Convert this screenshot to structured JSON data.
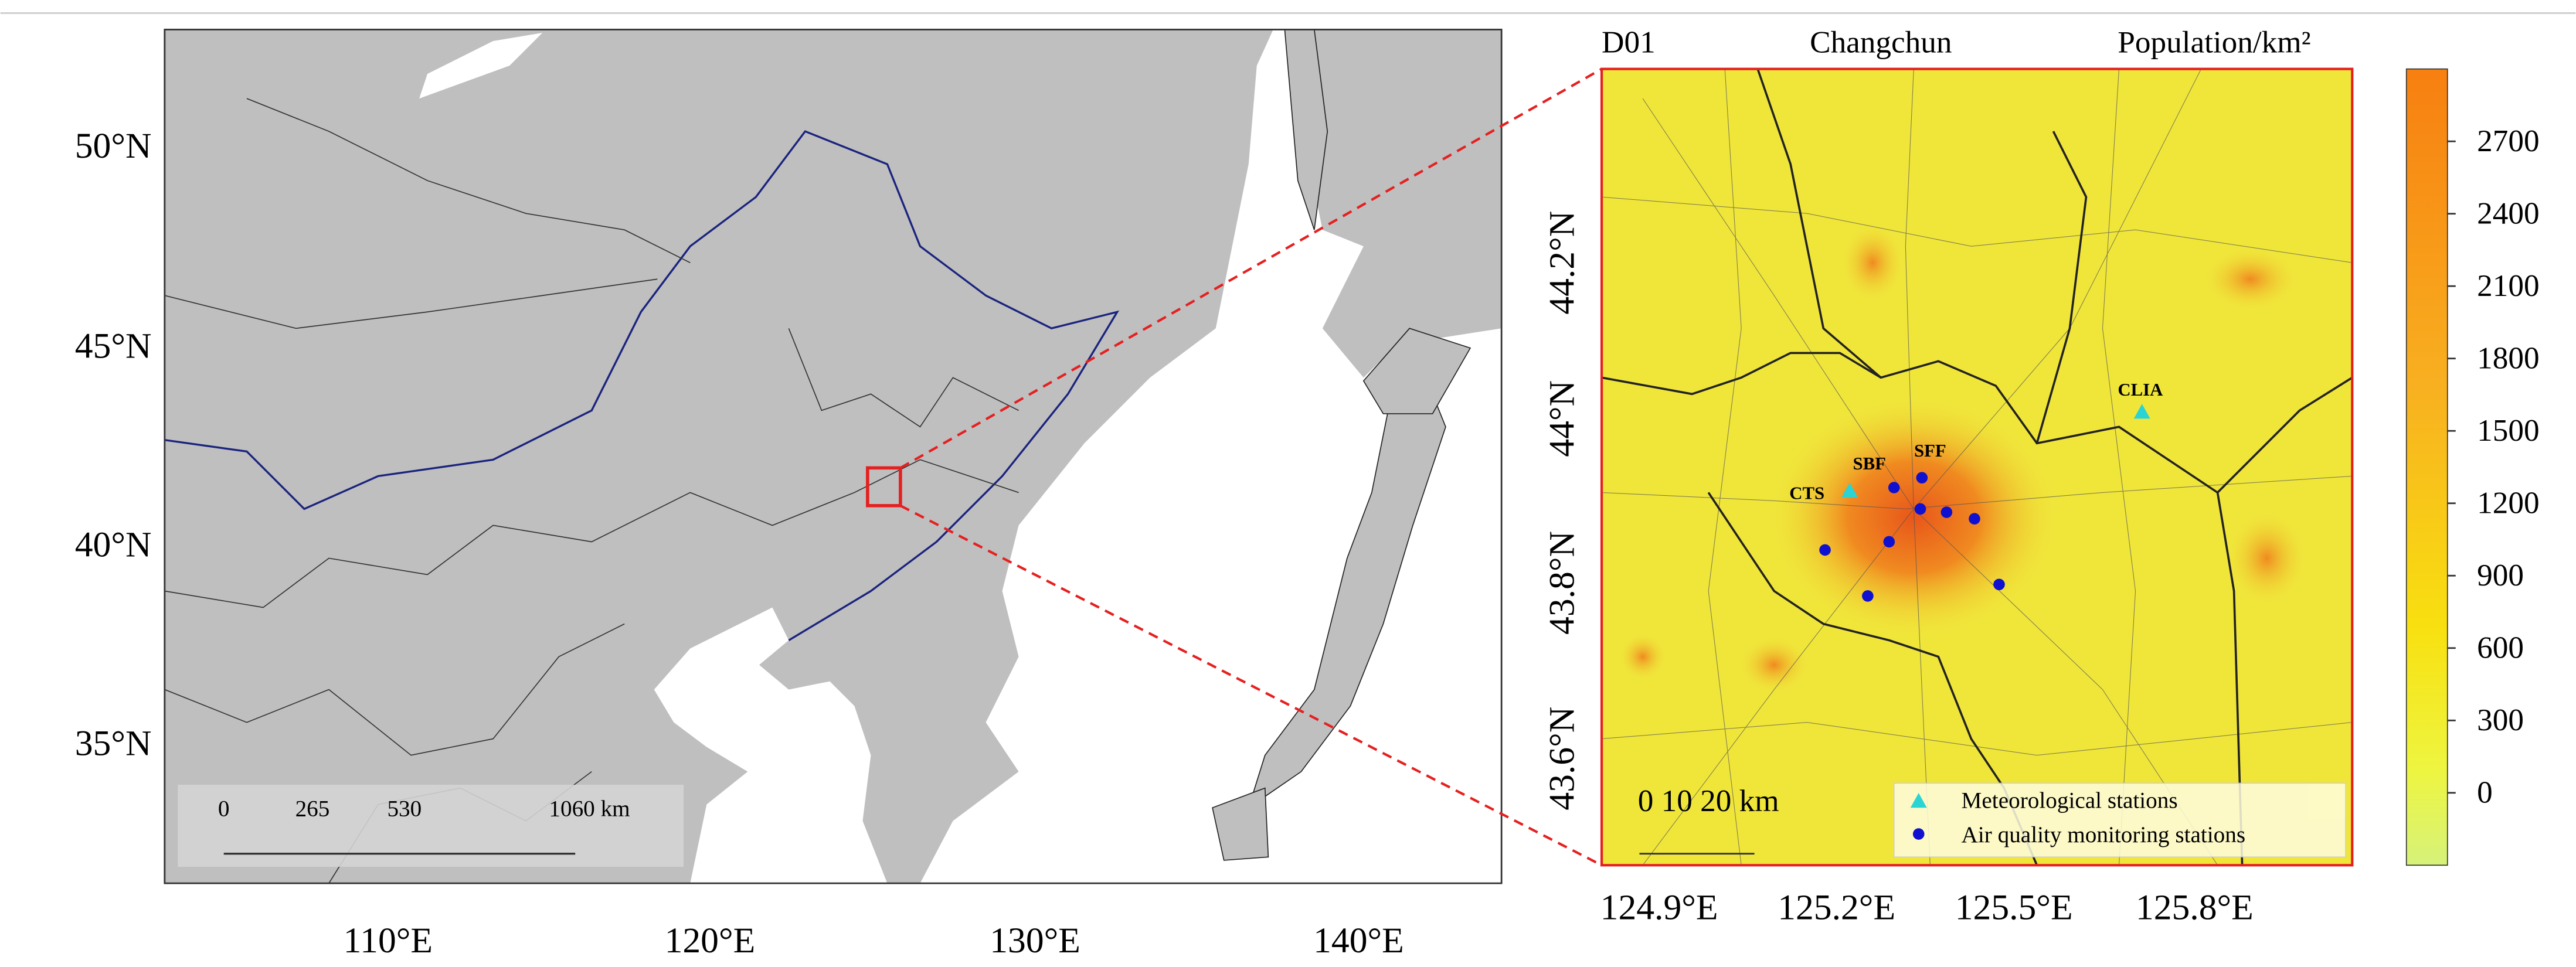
{
  "left_map": {
    "lat_labels": [
      "50°N",
      "45°N",
      "40°N",
      "35°N"
    ],
    "lon_labels": [
      "110°E",
      "120°E",
      "130°E",
      "140°E"
    ],
    "scale_bar": [
      "0",
      "265",
      "530",
      "1060 km"
    ]
  },
  "right_map": {
    "domain_label": "D01",
    "city": "Changchun",
    "variable": "Population/km²",
    "lat_labels": [
      "44.2°N",
      "44°N",
      "43.8°N",
      "43.6°N"
    ],
    "lon_labels": [
      "124.9°E",
      "125.2°E",
      "125.5°E",
      "125.8°E"
    ],
    "station_labels": [
      "CTS",
      "SBF",
      "SFF",
      "CLIA"
    ],
    "scale_bar": "0  10  20 km",
    "legend": [
      "Meteorological stations",
      "Air quality monitoring stations"
    ]
  },
  "colorbar": {
    "lim": [
      -300,
      3000
    ],
    "ticks": [
      0,
      300,
      600,
      900,
      1200,
      1500,
      1800,
      2100,
      2400,
      2700
    ]
  }
}
